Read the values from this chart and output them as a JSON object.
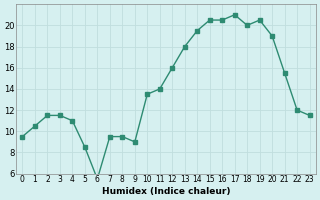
{
  "x": [
    0,
    1,
    2,
    3,
    4,
    5,
    6,
    7,
    8,
    9,
    10,
    11,
    12,
    13,
    14,
    15,
    16,
    17,
    18,
    19,
    20,
    21,
    22,
    23
  ],
  "y": [
    9.5,
    10.5,
    11.5,
    11.5,
    11.0,
    8.5,
    5.5,
    9.5,
    9.5,
    9.0,
    13.5,
    14.0,
    16.0,
    18.0,
    19.5,
    20.5,
    20.5,
    21.0,
    20.0,
    20.5,
    19.0,
    15.5,
    12.0,
    11.5
  ],
  "xlim": [
    -0.5,
    23.5
  ],
  "ylim": [
    6,
    22
  ],
  "xlabel": "Humidex (Indice chaleur)",
  "xticks": [
    0,
    1,
    2,
    3,
    4,
    5,
    6,
    7,
    8,
    9,
    10,
    11,
    12,
    13,
    14,
    15,
    16,
    17,
    18,
    19,
    20,
    21,
    22,
    23
  ],
  "yticks": [
    6,
    8,
    10,
    12,
    14,
    16,
    18,
    20
  ],
  "line_color": "#2e8b72",
  "marker_color": "#2e8b72",
  "bg_color": "#d6f0f0",
  "grid_color": "#c0dede",
  "xlabel_fontsize": 6.5,
  "tick_fontsize_x": 5.5,
  "tick_fontsize_y": 6.0
}
